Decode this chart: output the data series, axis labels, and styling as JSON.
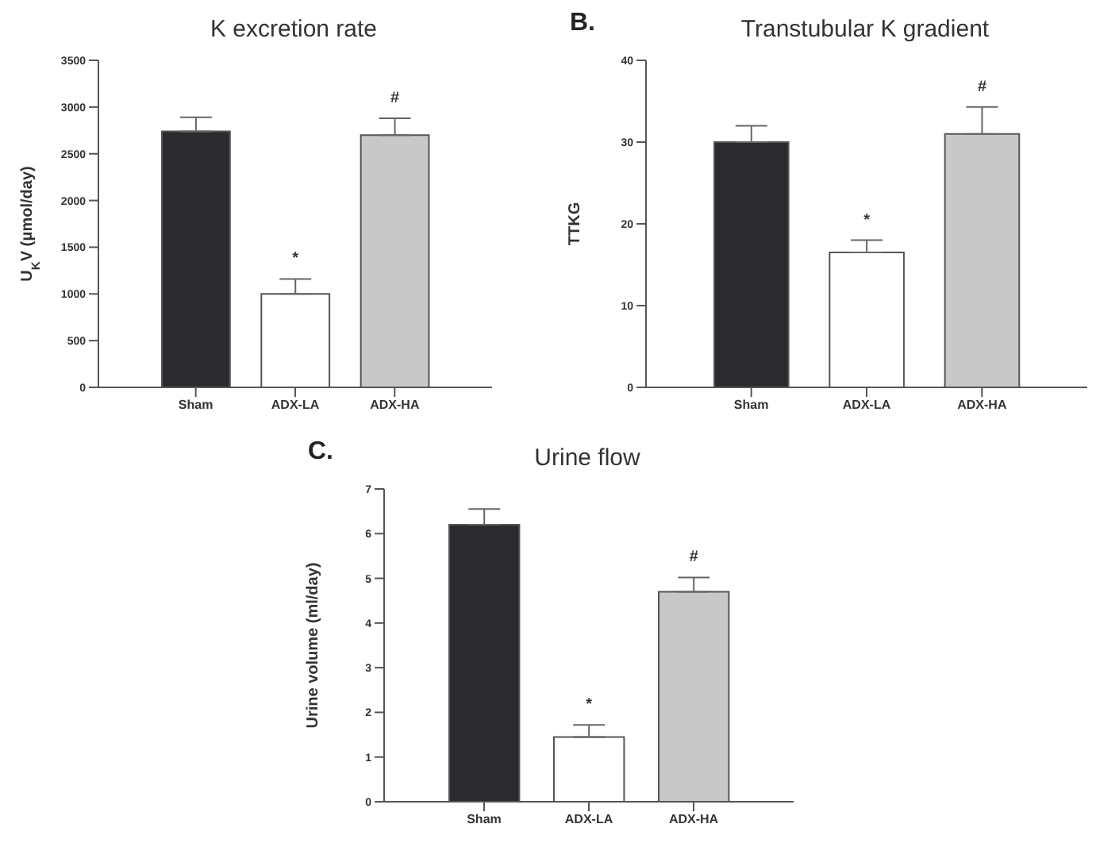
{
  "chart_data": [
    {
      "type": "bar",
      "title": "K excretion rate",
      "ylabel": "U$_{K}$V (μmol/day)",
      "value_labels": [
        null,
        "*",
        "#"
      ],
      "categories": [
        "Sham",
        "ADX-LA",
        "ADX-HA"
      ],
      "values": [
        2740,
        1000,
        2700
      ],
      "colors": [
        "#2b2b2f",
        "#ffffff",
        "#c8c8c8"
      ],
      "errors": [
        [
          2740,
          2890
        ],
        [
          1000,
          1160
        ],
        [
          2700,
          2880
        ]
      ],
      "ylim": [
        0,
        3500
      ],
      "yticks": [
        0,
        500,
        1000,
        1500,
        2000,
        2500,
        3000,
        3500
      ],
      "grid": false,
      "legend": false
    },
    {
      "type": "bar",
      "title": "Transtubular K gradient",
      "ylabel": "TTKG",
      "value_labels": [
        null,
        "*",
        "#"
      ],
      "categories": [
        "Sham",
        "ADX-LA",
        "ADX-HA"
      ],
      "values": [
        30,
        16.5,
        31
      ],
      "colors": [
        "#2b2b2f",
        "#ffffff",
        "#c8c8c8"
      ],
      "errors": [
        [
          30,
          32
        ],
        [
          16.5,
          18
        ],
        [
          31,
          34.3
        ]
      ],
      "ylim": [
        0,
        40
      ],
      "yticks": [
        0,
        10,
        20,
        30,
        40
      ],
      "grid": false,
      "legend": false,
      "annotations": [
        "B."
      ]
    },
    {
      "type": "bar",
      "title": "Urine flow",
      "ylabel": "Urine volume (ml/day)",
      "value_labels": [
        null,
        "*",
        "#"
      ],
      "categories": [
        "Sham",
        "ADX-LA",
        "ADX-HA"
      ],
      "values": [
        6.2,
        1.45,
        4.7
      ],
      "colors": [
        "#2b2b2f",
        "#ffffff",
        "#c8c8c8"
      ],
      "errors": [
        [
          6.2,
          6.55
        ],
        [
          1.45,
          1.72
        ],
        [
          4.7,
          5.02
        ]
      ],
      "ylim": [
        0,
        7
      ],
      "yticks": [
        0,
        1,
        2,
        3,
        4,
        5,
        6,
        7
      ],
      "grid": false,
      "legend": false,
      "annotations": [
        "C."
      ]
    }
  ]
}
